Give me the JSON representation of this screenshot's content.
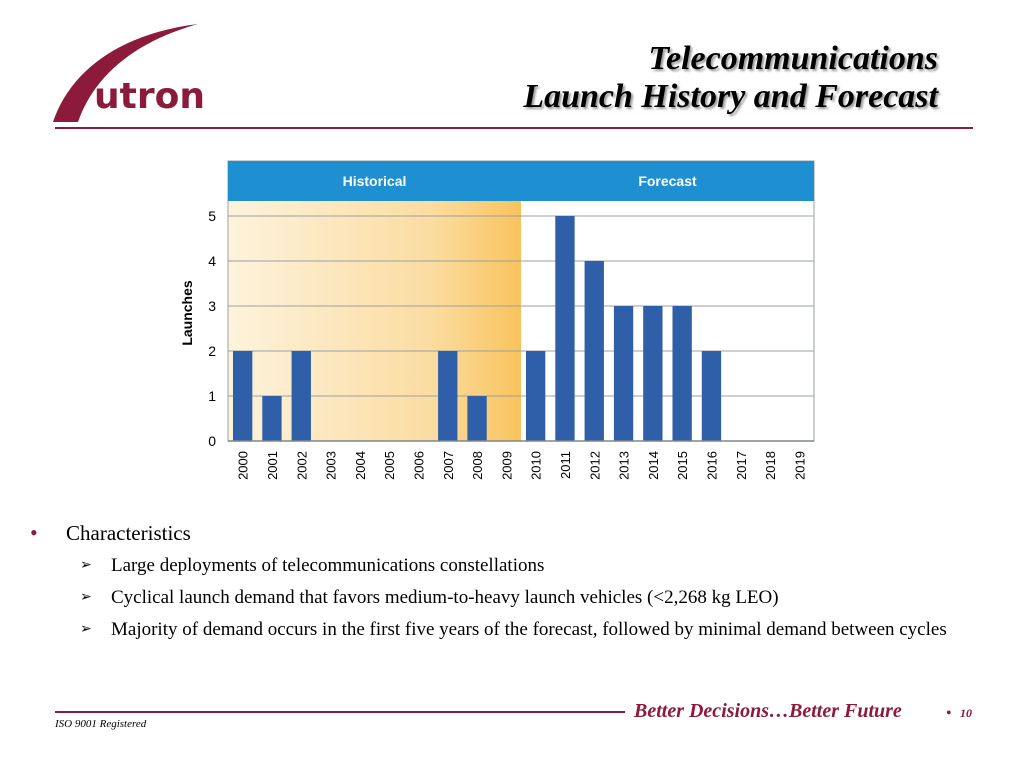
{
  "logo": {
    "text": "utron",
    "icon": "futron-swoosh-logo",
    "color": "#8b1a3b"
  },
  "title": {
    "line1": "Telecommunications",
    "line2": "Launch History and Forecast"
  },
  "chart_data": {
    "type": "bar",
    "title": "",
    "xlabel": "",
    "ylabel": "Launches",
    "ylim": [
      0,
      5
    ],
    "yticks": [
      0,
      1,
      2,
      3,
      4,
      5
    ],
    "grid": true,
    "categories": [
      "2000",
      "2001",
      "2002",
      "2003",
      "2004",
      "2005",
      "2006",
      "2007",
      "2008",
      "2009",
      "2010",
      "2011",
      "2012",
      "2013",
      "2014",
      "2015",
      "2016",
      "2017",
      "2018",
      "2019"
    ],
    "values": [
      2,
      1,
      2,
      0,
      0,
      0,
      0,
      2,
      1,
      0,
      2,
      5,
      4,
      3,
      3,
      3,
      2,
      0,
      0,
      0
    ],
    "regions": [
      {
        "label": "Historical",
        "from": "2000",
        "to": "2009"
      },
      {
        "label": "Forecast",
        "from": "2010",
        "to": "2019"
      }
    ],
    "colors": {
      "bar": "#2e5fa8",
      "header": "#1e8fd0",
      "historical_shade_light": "#fdf3dc",
      "historical_shade_dark": "#f8c35c"
    }
  },
  "bullets": {
    "heading": "Characteristics",
    "items": [
      "Large deployments of telecommunications constellations",
      "Cyclical launch demand that favors medium-to-heavy launch vehicles (<2,268 kg LEO)",
      "Majority of demand occurs in the first five years of the forecast, followed by minimal demand between cycles"
    ]
  },
  "footer": {
    "tagline": "Better Decisions…Better Future",
    "separator": "•",
    "page": "10",
    "iso": "ISO 9001 Registered"
  },
  "colors": {
    "accent": "#8b1a3b"
  }
}
